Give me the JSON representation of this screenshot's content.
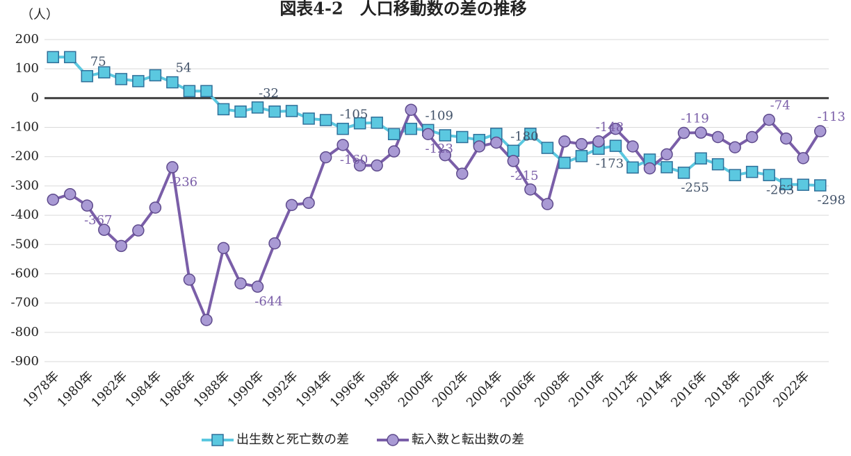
{
  "chart_data": {
    "type": "line",
    "title": "図表4-2　人口移動数の差の推移",
    "y_label": "（人）",
    "categories": [
      "1978年",
      null,
      "1980年",
      null,
      "1982年",
      null,
      "1984年",
      null,
      "1986年",
      null,
      "1988年",
      null,
      "1990年",
      null,
      "1992年",
      null,
      "1994年",
      null,
      "1996年",
      null,
      "1998年",
      null,
      "2000年",
      null,
      "2002年",
      null,
      "2004年",
      null,
      "2006年",
      null,
      "2008年",
      null,
      "2010年",
      null,
      "2012年",
      null,
      "2014年",
      null,
      "2016年",
      null,
      "2018年",
      null,
      "2020年",
      null,
      "2022年",
      null
    ],
    "series": [
      {
        "name": "出生数と死亡数の差",
        "color": "#5bc8e0",
        "marker": "square",
        "values": [
          140,
          140,
          75,
          88,
          65,
          58,
          78,
          54,
          24,
          24,
          -38,
          -46,
          -32,
          -46,
          -44,
          -70,
          -75,
          -105,
          -86,
          -84,
          -123,
          -105,
          -109,
          -127,
          -133,
          -143,
          -122,
          -180,
          -122,
          -170,
          -221,
          -198,
          -173,
          -163,
          -237,
          -210,
          -236,
          -255,
          -206,
          -226,
          -263,
          -252,
          -263,
          -294,
          -296,
          -298
        ],
        "value_labels": [
          null,
          null,
          "75",
          null,
          null,
          null,
          null,
          "54",
          null,
          null,
          null,
          null,
          "-32",
          null,
          null,
          null,
          null,
          "-105",
          null,
          null,
          null,
          null,
          "-109",
          null,
          null,
          null,
          null,
          "-180",
          null,
          null,
          null,
          null,
          "-173",
          null,
          null,
          null,
          null,
          "-255",
          null,
          null,
          null,
          null,
          "-263",
          null,
          null,
          "-298"
        ]
      },
      {
        "name": "転入数と転出数の差",
        "color": "#7a5ea8",
        "marker": "circle",
        "values": [
          -347,
          -328,
          -367,
          -450,
          -505,
          -452,
          -374,
          -236,
          -620,
          -758,
          -512,
          -633,
          -644,
          -496,
          -365,
          -358,
          -202,
          -160,
          -230,
          -230,
          -182,
          -40,
          -123,
          -195,
          -258,
          -165,
          -152,
          -215,
          -312,
          -362,
          -148,
          -157,
          -148,
          -105,
          -165,
          -240,
          -192,
          -119,
          -118,
          -133,
          -168,
          -133,
          -74,
          -138,
          -205,
          -113
        ],
        "value_labels": [
          null,
          null,
          "-367",
          null,
          null,
          null,
          null,
          "-236",
          null,
          null,
          null,
          null,
          "-644",
          null,
          null,
          null,
          null,
          "-160",
          null,
          null,
          null,
          null,
          "-123",
          null,
          null,
          null,
          null,
          "-215",
          null,
          null,
          null,
          null,
          "-148",
          null,
          null,
          null,
          null,
          "-119",
          null,
          null,
          null,
          null,
          "-74",
          null,
          null,
          "-113"
        ]
      }
    ],
    "ylim": [
      -900,
      200
    ],
    "yticks": [
      200,
      100,
      0,
      -100,
      -200,
      -300,
      -400,
      -500,
      -600,
      -700,
      -800,
      -900
    ],
    "grid": true,
    "legend": "bottom"
  }
}
